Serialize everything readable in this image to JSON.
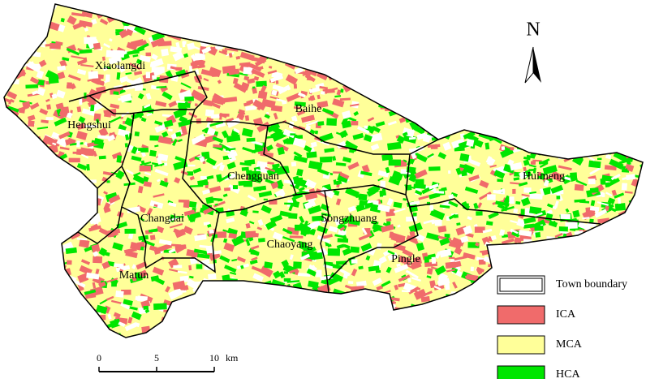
{
  "towns": [
    {
      "label": "Xiaolangdi"
    },
    {
      "label": "Hengshui"
    },
    {
      "label": "Baihe"
    },
    {
      "label": "Chengguan"
    },
    {
      "label": "Huimeng"
    },
    {
      "label": "Changdai"
    },
    {
      "label": "Songzhuang"
    },
    {
      "label": "Chaoyang"
    },
    {
      "label": "Pingle"
    },
    {
      "label": "Matun"
    }
  ],
  "north": "N",
  "legend": [
    {
      "label": "Town boundary"
    },
    {
      "label": "ICA"
    },
    {
      "label": "MCA"
    },
    {
      "label": "HCA"
    }
  ],
  "scale_bar": {
    "ticks": [
      0,
      5,
      10
    ],
    "unit": "km"
  }
}
